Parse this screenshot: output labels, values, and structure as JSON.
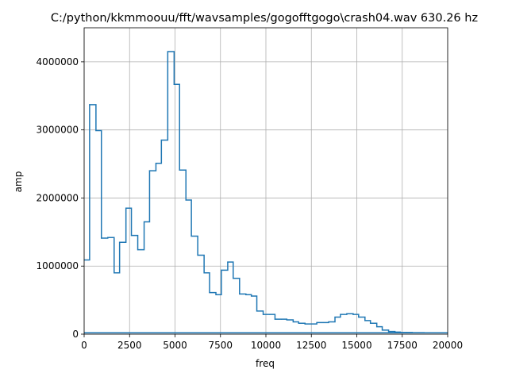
{
  "chart_data": {
    "type": "line",
    "step": true,
    "title": "C:/python/kkmmoouu/fft/wavsamples/gogofftgogo\\crash04.wav 630.26 hz",
    "xlabel": "freq",
    "ylabel": "amp",
    "xlim": [
      0,
      20000
    ],
    "ylim": [
      0,
      4500000
    ],
    "grid": true,
    "xticks": [
      0,
      2500,
      5000,
      7500,
      10000,
      12500,
      15000,
      17500,
      20000
    ],
    "xtick_labels": [
      "0",
      "2500",
      "5000",
      "7500",
      "10000",
      "12500",
      "15000",
      "17500",
      "20000"
    ],
    "yticks": [
      0,
      1000000,
      2000000,
      3000000,
      4000000
    ],
    "ytick_labels": [
      "0",
      "1000000",
      "2000000",
      "3000000",
      "4000000"
    ],
    "series": [
      {
        "color": "#1f77b4",
        "x": [
          0,
          300,
          650,
          950,
          1300,
          1650,
          1950,
          2300,
          2600,
          2950,
          3300,
          3600,
          3950,
          4250,
          4600,
          4950,
          5250,
          5600,
          5900,
          6250,
          6600,
          6900,
          7250,
          7550,
          7900,
          8200,
          8550,
          8900,
          9200,
          9500,
          9850,
          10200,
          10500,
          10850,
          11150,
          11500,
          11800,
          12150,
          12500,
          12800,
          13150,
          13450,
          13800,
          14100,
          14450,
          14800,
          15100,
          15450,
          15750,
          16100,
          16400,
          16750,
          17100,
          17400,
          17750,
          18050,
          18400,
          18700,
          19050,
          19400,
          19700,
          20000
        ],
        "y": [
          1090000,
          3370000,
          2990000,
          1410000,
          1420000,
          900000,
          1350000,
          1850000,
          1450000,
          1240000,
          1650000,
          2400000,
          2510000,
          2850000,
          4150000,
          3670000,
          2410000,
          1970000,
          1440000,
          1160000,
          900000,
          610000,
          580000,
          940000,
          1060000,
          820000,
          590000,
          580000,
          560000,
          340000,
          290000,
          290000,
          220000,
          220000,
          210000,
          180000,
          160000,
          150000,
          150000,
          170000,
          170000,
          180000,
          250000,
          290000,
          300000,
          290000,
          250000,
          200000,
          160000,
          110000,
          60000,
          40000,
          30000,
          25000,
          25000,
          22000,
          22000,
          20000,
          20000,
          20000,
          20000,
          20000
        ]
      }
    ]
  }
}
